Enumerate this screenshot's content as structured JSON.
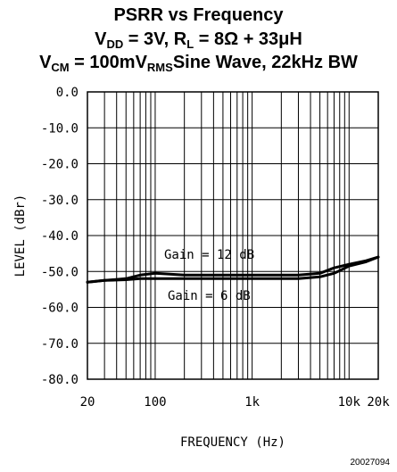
{
  "title_lines": [
    {
      "parts": [
        {
          "t": "PSRR vs Frequency"
        }
      ]
    },
    {
      "parts": [
        {
          "t": "V"
        },
        {
          "sub": "DD"
        },
        {
          "t": " = 3V, R"
        },
        {
          "sub": "L"
        },
        {
          "t": " = 8Ω + 33μH"
        }
      ]
    },
    {
      "parts": [
        {
          "t": "V"
        },
        {
          "sub": "CM"
        },
        {
          "t": " = 100mV"
        },
        {
          "sub": "RMS"
        },
        {
          "t": "Sine Wave, 22kHz BW"
        }
      ]
    }
  ],
  "chart_data": {
    "type": "line",
    "xlabel": "FREQUENCY (Hz)",
    "ylabel": "LEVEL (dBr)",
    "x_scale": "log",
    "xlim": [
      20,
      20000
    ],
    "ylim": [
      -80,
      0
    ],
    "grid": true,
    "x_ticks": [
      {
        "value": 20,
        "label": "20"
      },
      {
        "value": 100,
        "label": "100"
      },
      {
        "value": 1000,
        "label": "1k"
      },
      {
        "value": 10000,
        "label": "10k"
      },
      {
        "value": 20000,
        "label": "20k"
      }
    ],
    "y_ticks": [
      {
        "value": 0,
        "label": "0.0"
      },
      {
        "value": -10,
        "label": "-10.0"
      },
      {
        "value": -20,
        "label": "-20.0"
      },
      {
        "value": -30,
        "label": "-30.0"
      },
      {
        "value": -40,
        "label": "-40.0"
      },
      {
        "value": -50,
        "label": "-50.0"
      },
      {
        "value": -60,
        "label": "-60.0"
      },
      {
        "value": -70,
        "label": "-70.0"
      },
      {
        "value": -80,
        "label": "-80.0"
      }
    ],
    "series": [
      {
        "name": "Gain = 12 dB",
        "x": [
          20,
          30,
          50,
          70,
          100,
          200,
          500,
          1000,
          2000,
          3000,
          5000,
          7000,
          10000,
          15000,
          20000
        ],
        "y": [
          -53,
          -52.5,
          -52,
          -51,
          -50.5,
          -51,
          -51,
          -51,
          -51,
          -51,
          -50.5,
          -49,
          -48,
          -47,
          -46
        ]
      },
      {
        "name": "Gain = 6 dB",
        "x": [
          20,
          30,
          50,
          70,
          100,
          200,
          500,
          1000,
          2000,
          3000,
          5000,
          7000,
          10000,
          15000,
          20000
        ],
        "y": [
          -53,
          -52.5,
          -52.3,
          -52,
          -52,
          -52,
          -52,
          -52,
          -52,
          -52,
          -51.5,
          -50.5,
          -48.5,
          -47.3,
          -46
        ]
      }
    ]
  },
  "annotations": {
    "gain12": "Gain = 12 dB",
    "gain6": "Gain = 6 dB"
  },
  "figure_code": "20027094",
  "colors": {
    "line": "#000000",
    "grid": "#000000",
    "background": "#ffffff"
  }
}
